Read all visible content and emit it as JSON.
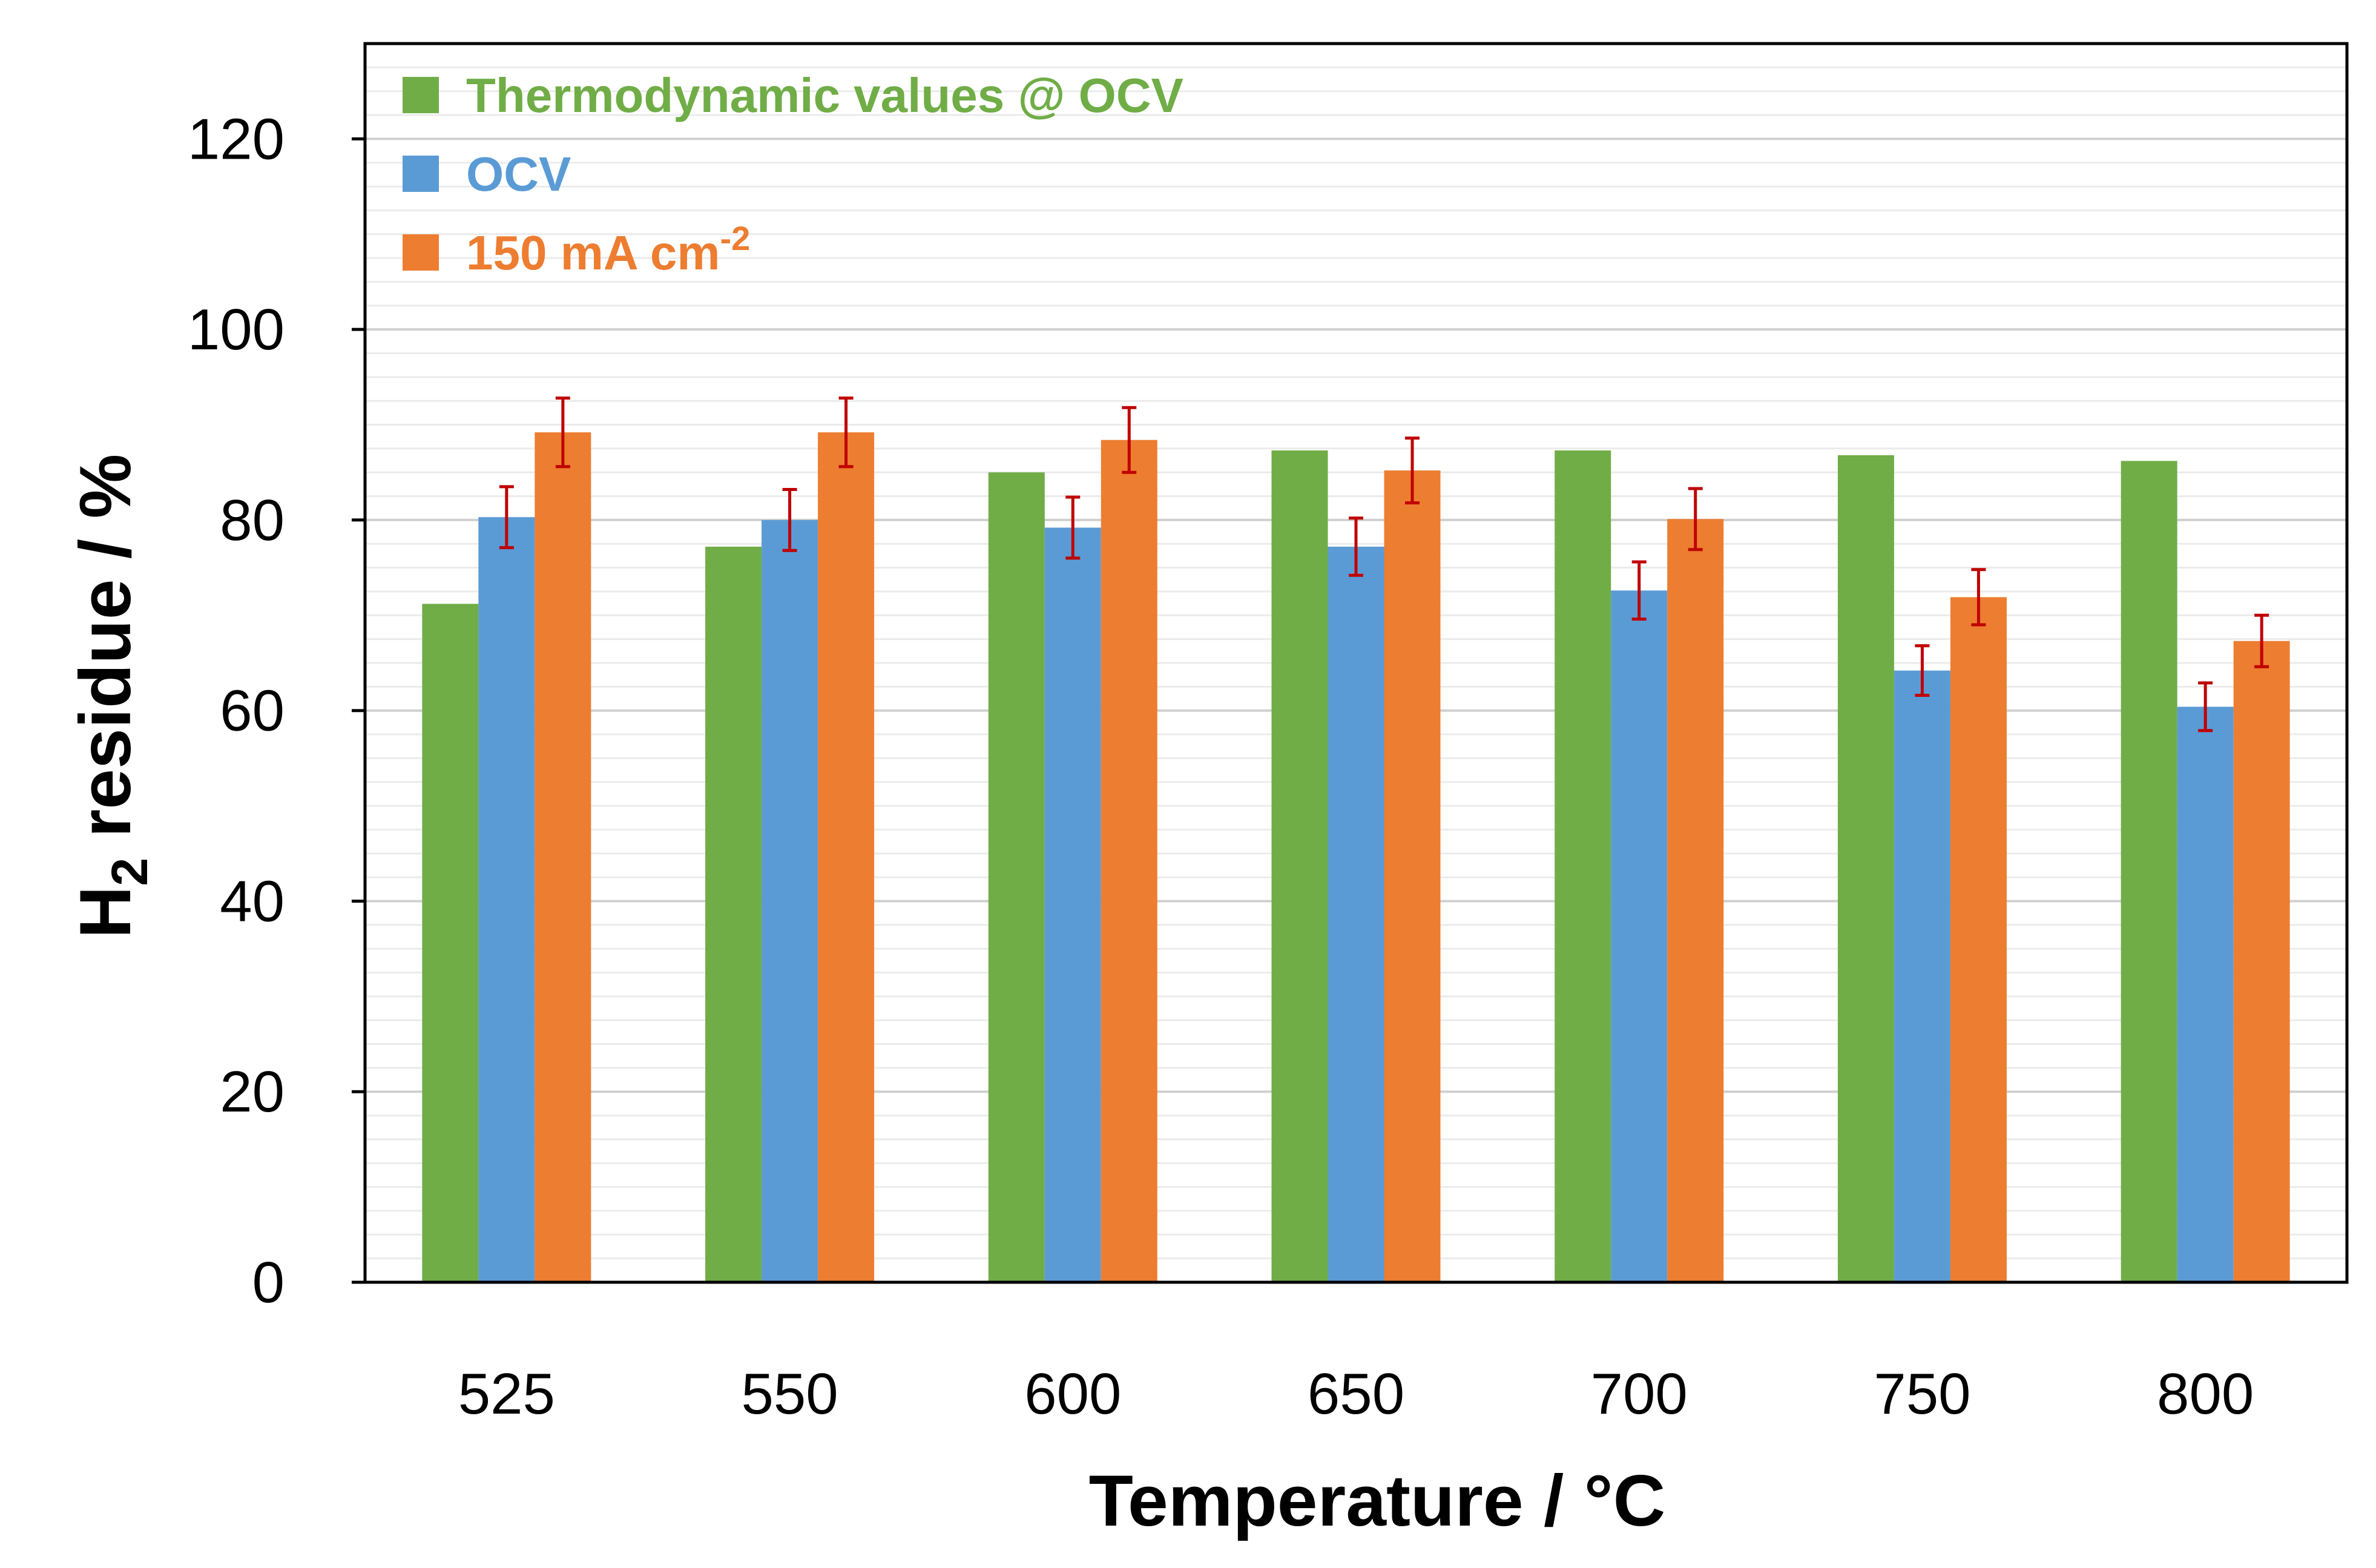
{
  "chart_data": {
    "type": "bar",
    "title": "",
    "xlabel": "Temperature / °C",
    "ylabel_parts": {
      "main": "H",
      "sub": "2",
      "rest": " residue / %"
    },
    "categories": [
      "525",
      "550",
      "600",
      "650",
      "700",
      "750",
      "800"
    ],
    "ylim": [
      0,
      130
    ],
    "yticks": [
      0,
      20,
      40,
      60,
      80,
      100,
      120
    ],
    "minor_grid_step": 2.5,
    "grid": true,
    "legend_position": "top-left",
    "series": [
      {
        "name": "Thermodynamic values @ OCV",
        "color": "#70AD47",
        "values": [
          71.2,
          77.2,
          85.0,
          87.3,
          87.3,
          86.8,
          86.2
        ],
        "errors": null
      },
      {
        "name": "OCV",
        "color": "#5B9BD5",
        "values": [
          80.3,
          80.0,
          79.2,
          77.2,
          72.6,
          64.2,
          60.4
        ],
        "errors": [
          3.2,
          3.2,
          3.2,
          3.0,
          3.0,
          2.6,
          2.5
        ]
      },
      {
        "name": "150 mA cm",
        "name_sup": "-2",
        "color": "#ED7D31",
        "values": [
          89.2,
          89.2,
          88.4,
          85.2,
          80.1,
          71.9,
          67.3
        ],
        "errors": [
          3.6,
          3.6,
          3.4,
          3.4,
          3.2,
          2.9,
          2.7
        ]
      }
    ],
    "error_bar_color": "#C00000"
  }
}
